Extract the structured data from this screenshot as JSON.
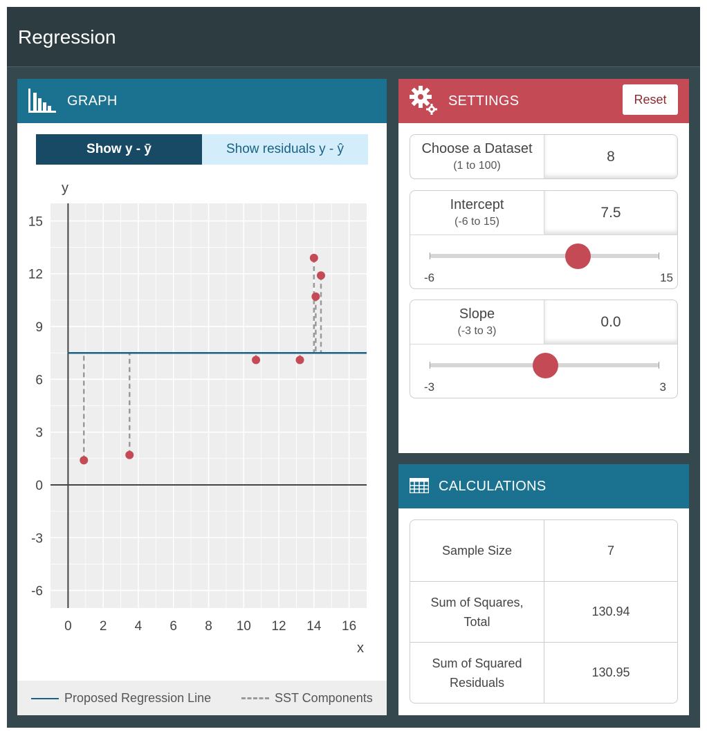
{
  "app": {
    "title": "Regression"
  },
  "graph": {
    "header": "GRAPH",
    "toggle": {
      "active": "Show y - ȳ",
      "inactive": "Show residuals y - ŷ"
    },
    "legend": {
      "line": "Proposed Regression Line",
      "sst": "SST Components"
    }
  },
  "settings": {
    "header": "SETTINGS",
    "reset": "Reset",
    "dataset": {
      "label": "Choose a Dataset",
      "range": "(1 to 100)",
      "value": "8"
    },
    "intercept": {
      "label": "Intercept",
      "range": "(-6 to 15)",
      "value": "7.5",
      "min": "-6",
      "max": "15",
      "level": 0.643
    },
    "slope": {
      "label": "Slope",
      "range": "(-3 to 3)",
      "value": "0.0",
      "min": "-3",
      "max": "3",
      "level": 0.5
    }
  },
  "calculations": {
    "header": "CALCULATIONS",
    "rows": [
      {
        "label": "Sample Size",
        "value": "7"
      },
      {
        "label": "Sum of Squares, Total",
        "value": "130.94"
      },
      {
        "label": "Sum of Squared Residuals",
        "value": "130.95"
      }
    ]
  },
  "colors": {
    "accent_blue": "#1a7290",
    "accent_red": "#c44a55",
    "line": "#1a6285",
    "point": "#c44a55",
    "dash": "#9a9a9a"
  },
  "icons": {
    "graph": "bar-chart-icon",
    "settings": "gear-icon",
    "calculations": "table-icon"
  },
  "chart_data": {
    "type": "scatter",
    "xlabel": "x",
    "ylabel": "y",
    "xlim": [
      -1,
      17
    ],
    "ylim": [
      -7,
      16
    ],
    "xticks": [
      0,
      2,
      4,
      6,
      8,
      10,
      12,
      14,
      16
    ],
    "yticks": [
      -6,
      -3,
      0,
      3,
      6,
      9,
      12,
      15
    ],
    "mean_y": 7.5,
    "line": {
      "intercept": 7.5,
      "slope": 0.0
    },
    "points": [
      {
        "x": 0.9,
        "y": 1.4
      },
      {
        "x": 3.5,
        "y": 1.7
      },
      {
        "x": 10.7,
        "y": 7.1
      },
      {
        "x": 13.2,
        "y": 7.1
      },
      {
        "x": 14.0,
        "y": 12.9
      },
      {
        "x": 14.1,
        "y": 10.7
      },
      {
        "x": 14.4,
        "y": 11.9
      }
    ],
    "grid": true
  }
}
